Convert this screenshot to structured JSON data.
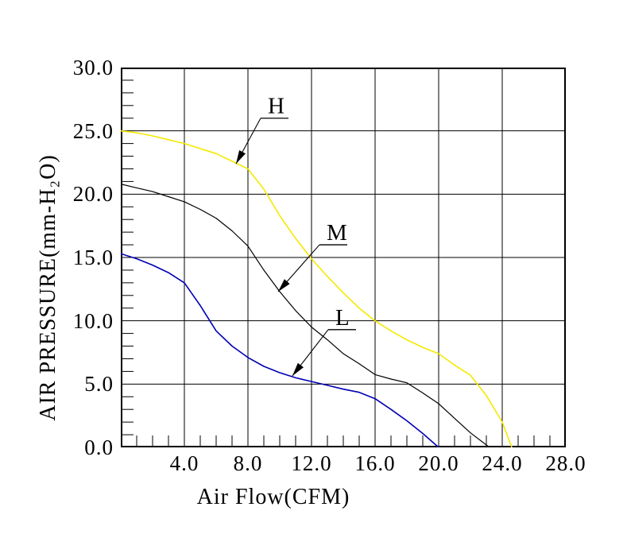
{
  "chart_data": {
    "type": "line",
    "title": "",
    "xlabel": "Air Flow(CFM)",
    "ylabel": "AIR PRESSURE(mm-H₂O)",
    "xlim": [
      0,
      28
    ],
    "ylim": [
      0,
      30
    ],
    "grid": true,
    "x_major_step": 4,
    "y_major_step": 5,
    "x_minor_step": 1,
    "y_minor_step": 1,
    "x_ticks": {
      "values": [
        4,
        8,
        12,
        16,
        20,
        24,
        28
      ],
      "labels": [
        "4.0",
        "8.0",
        "12.0",
        "16.0",
        "20.0",
        "24.0",
        "28.0"
      ]
    },
    "y_ticks": {
      "values": [
        0,
        5,
        10,
        15,
        20,
        25,
        30
      ],
      "labels": [
        "0.0",
        "5.0",
        "10.0",
        "15.0",
        "20.0",
        "25.0",
        "30.0"
      ]
    },
    "series": [
      {
        "name": "H",
        "color": "#f5e900",
        "points": [
          [
            0,
            25.0
          ],
          [
            1,
            24.85
          ],
          [
            2,
            24.6
          ],
          [
            3,
            24.3
          ],
          [
            4,
            24.0
          ],
          [
            5,
            23.6
          ],
          [
            6,
            23.2
          ],
          [
            7,
            22.6
          ],
          [
            8,
            22.0
          ],
          [
            9,
            20.4
          ],
          [
            10,
            18.3
          ],
          [
            11,
            16.5
          ],
          [
            12,
            14.9
          ],
          [
            13,
            13.5
          ],
          [
            14,
            12.2
          ],
          [
            15,
            11.0
          ],
          [
            16,
            10.0
          ],
          [
            17,
            9.2
          ],
          [
            18,
            8.5
          ],
          [
            19,
            7.9
          ],
          [
            20,
            7.4
          ],
          [
            21,
            6.5
          ],
          [
            22,
            5.7
          ],
          [
            23,
            4.1
          ],
          [
            24,
            2.0
          ],
          [
            24.6,
            0
          ]
        ]
      },
      {
        "name": "M",
        "color": "#000000",
        "points": [
          [
            0,
            20.8
          ],
          [
            1,
            20.5
          ],
          [
            2,
            20.2
          ],
          [
            3,
            19.8
          ],
          [
            4,
            19.4
          ],
          [
            5,
            18.8
          ],
          [
            6,
            18.1
          ],
          [
            7,
            17.1
          ],
          [
            8,
            15.9
          ],
          [
            9,
            14.0
          ],
          [
            10,
            12.3
          ],
          [
            11,
            10.8
          ],
          [
            12,
            9.5
          ],
          [
            13,
            8.5
          ],
          [
            14,
            7.4
          ],
          [
            15,
            6.6
          ],
          [
            16,
            5.75
          ],
          [
            17,
            5.4
          ],
          [
            18,
            5.1
          ],
          [
            19,
            4.3
          ],
          [
            20,
            3.45
          ],
          [
            21,
            2.3
          ],
          [
            22,
            1.15
          ],
          [
            23.2,
            0
          ]
        ]
      },
      {
        "name": "L",
        "color": "#0000b4",
        "points": [
          [
            0,
            15.3
          ],
          [
            1,
            14.9
          ],
          [
            2,
            14.4
          ],
          [
            3,
            13.8
          ],
          [
            4,
            13.0
          ],
          [
            5,
            11.2
          ],
          [
            6,
            9.2
          ],
          [
            7,
            8.0
          ],
          [
            8,
            7.1
          ],
          [
            9,
            6.4
          ],
          [
            10,
            5.9
          ],
          [
            11,
            5.5
          ],
          [
            12,
            5.2
          ],
          [
            13,
            4.9
          ],
          [
            14,
            4.6
          ],
          [
            15,
            4.35
          ],
          [
            16,
            3.85
          ],
          [
            17,
            3.0
          ],
          [
            18,
            2.1
          ],
          [
            19,
            1.1
          ],
          [
            20,
            0
          ]
        ]
      }
    ],
    "annotations": [
      {
        "label": "H",
        "underline_from": [
          8.8,
          26.0
        ],
        "underline_to": [
          10.55,
          26.0
        ],
        "arrow_tip": [
          7.25,
          22.4
        ]
      },
      {
        "label": "M",
        "underline_from": [
          12.5,
          16.0
        ],
        "underline_to": [
          14.25,
          16.0
        ],
        "arrow_tip": [
          9.9,
          12.3
        ]
      },
      {
        "label": "L",
        "underline_from": [
          13.05,
          9.3
        ],
        "underline_to": [
          14.8,
          9.3
        ],
        "arrow_tip": [
          10.8,
          5.65
        ]
      }
    ],
    "style": {
      "grid_color": "#000000",
      "border_color": "#000000",
      "background": "#ffffff"
    }
  }
}
